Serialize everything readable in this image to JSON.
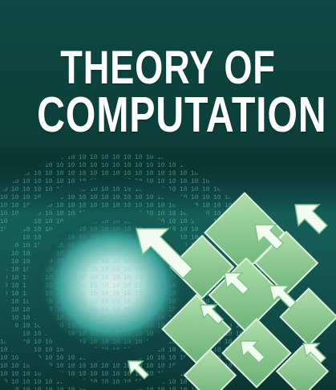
{
  "cover": {
    "title_line_1": "THEORY OF",
    "title_line_2": "COMPUTATION"
  },
  "colors": {
    "background_top": "#0e4842",
    "tunnel_glow": "#e9fff9",
    "tile_green": "#8fcf8f",
    "title_text": "#ffffff"
  },
  "icons": [
    "binary-tunnel",
    "arrow-icon",
    "diamond-tile"
  ]
}
